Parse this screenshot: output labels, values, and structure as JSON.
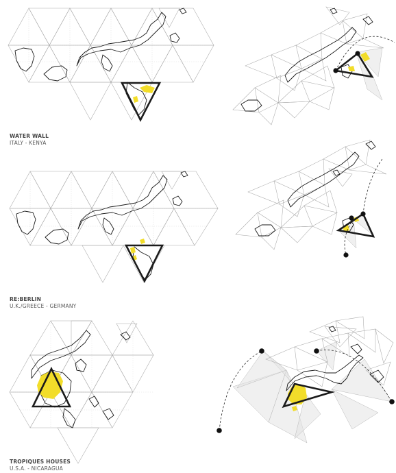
{
  "rows": [
    {
      "title": "WATER WALL",
      "subtitle": "ITALY - KENYA"
    },
    {
      "title": "RE:BERLIN",
      "subtitle": "U.K./GREECE - GERMANY"
    },
    {
      "title": "TROPIQUES HOUSES",
      "subtitle": "U.S.A. - NICARAGUA"
    }
  ],
  "colors": {
    "highlight": "#f2dd2a",
    "outline": "#1b1b1b",
    "grid": "#a9a9a9"
  }
}
